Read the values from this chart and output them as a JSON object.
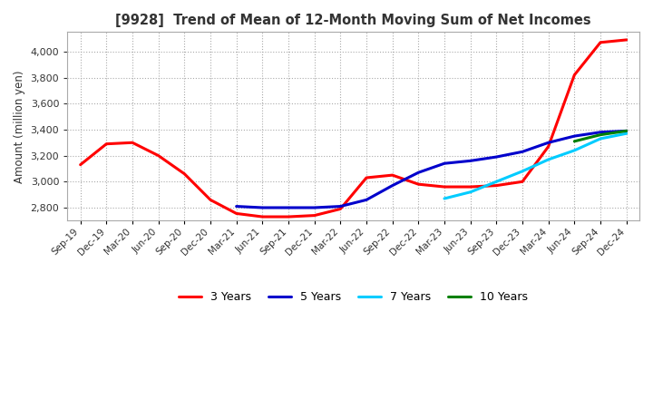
{
  "title": "[9928]  Trend of Mean of 12-Month Moving Sum of Net Incomes",
  "ylabel": "Amount (million yen)",
  "ylim": [
    2700,
    4150
  ],
  "yticks": [
    2800,
    3000,
    3200,
    3400,
    3600,
    3800,
    4000
  ],
  "background_color": "#ffffff",
  "grid_color": "#aaaaaa",
  "x_labels": [
    "Sep-19",
    "Dec-19",
    "Mar-20",
    "Jun-20",
    "Sep-20",
    "Dec-20",
    "Mar-21",
    "Jun-21",
    "Sep-21",
    "Dec-21",
    "Mar-22",
    "Jun-22",
    "Sep-22",
    "Dec-22",
    "Mar-23",
    "Jun-23",
    "Sep-23",
    "Dec-23",
    "Mar-24",
    "Jun-24",
    "Sep-24",
    "Dec-24"
  ],
  "series": {
    "3 Years": {
      "color": "#ff0000",
      "values": [
        3130,
        3290,
        3300,
        3200,
        3060,
        2860,
        2755,
        2730,
        2730,
        2740,
        2790,
        3030,
        3050,
        2980,
        2960,
        2960,
        2970,
        3000,
        3270,
        3820,
        4070,
        4090
      ]
    },
    "5 Years": {
      "color": "#0000cc",
      "values": [
        null,
        null,
        null,
        null,
        null,
        null,
        2810,
        2800,
        2800,
        2800,
        2810,
        2860,
        2970,
        3070,
        3140,
        3160,
        3190,
        3230,
        3300,
        3350,
        3380,
        3390
      ]
    },
    "7 Years": {
      "color": "#00ccff",
      "values": [
        null,
        null,
        null,
        null,
        null,
        null,
        null,
        null,
        null,
        null,
        null,
        null,
        null,
        null,
        2870,
        2920,
        3000,
        3080,
        3170,
        3240,
        3330,
        3370
      ]
    },
    "10 Years": {
      "color": "#008000",
      "values": [
        null,
        null,
        null,
        null,
        null,
        null,
        null,
        null,
        null,
        null,
        null,
        null,
        null,
        null,
        null,
        null,
        null,
        null,
        null,
        3310,
        3360,
        3390
      ]
    }
  },
  "legend_entries": [
    "3 Years",
    "5 Years",
    "7 Years",
    "10 Years"
  ]
}
